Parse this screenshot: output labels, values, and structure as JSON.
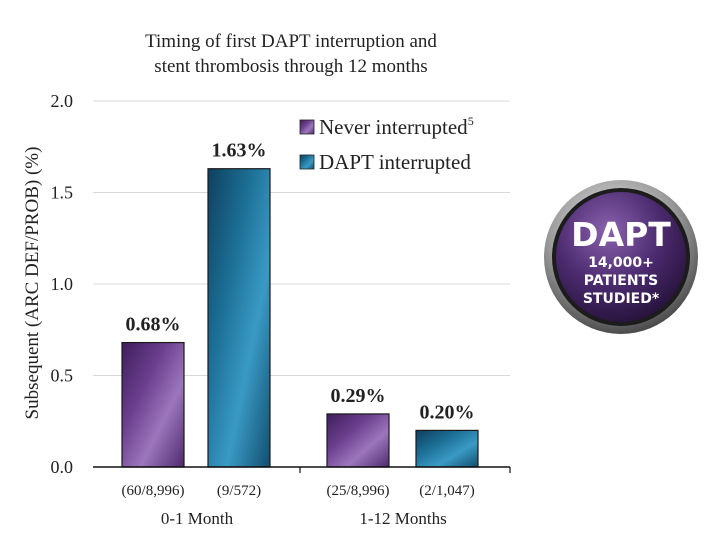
{
  "chart_data": {
    "type": "bar",
    "title_line1": "Timing of first DAPT interruption and",
    "title_line2": "stent thrombosis through 12 months",
    "ylabel": "Subsequent  (ARC DEF/PROB) (%)",
    "xlabel": "",
    "ylim": [
      0,
      2.0
    ],
    "yticks": [
      "0.0",
      "0.5",
      "1.0",
      "1.5",
      "2.0"
    ],
    "grid": true,
    "legend_position": "top-right",
    "groups": [
      {
        "label": "0-1 Month",
        "bars": [
          {
            "series": "Never interrupted",
            "value": 0.68,
            "value_label": "0.68%",
            "count_label": "(60/8,996)"
          },
          {
            "series": "DAPT interrupted",
            "value": 1.63,
            "value_label": "1.63%",
            "count_label": "(9/572)"
          }
        ]
      },
      {
        "label": "1-12 Months",
        "bars": [
          {
            "series": "Never interrupted",
            "value": 0.29,
            "value_label": "0.29%",
            "count_label": "(25/8,996)"
          },
          {
            "series": "DAPT interrupted",
            "value": 0.2,
            "value_label": "0.20%",
            "count_label": "(2/1,047)"
          }
        ]
      }
    ],
    "series": [
      {
        "name": "Never interrupted",
        "superscript": "5",
        "color": "#6a3e8c"
      },
      {
        "name": "DAPT interrupted",
        "superscript": "",
        "color": "#1c6f95"
      }
    ]
  },
  "badge": {
    "title": "DAPT",
    "line1": "14,000+",
    "line2": "PATIENTS",
    "line3": "STUDIED*",
    "color": "#4b2a6e"
  }
}
